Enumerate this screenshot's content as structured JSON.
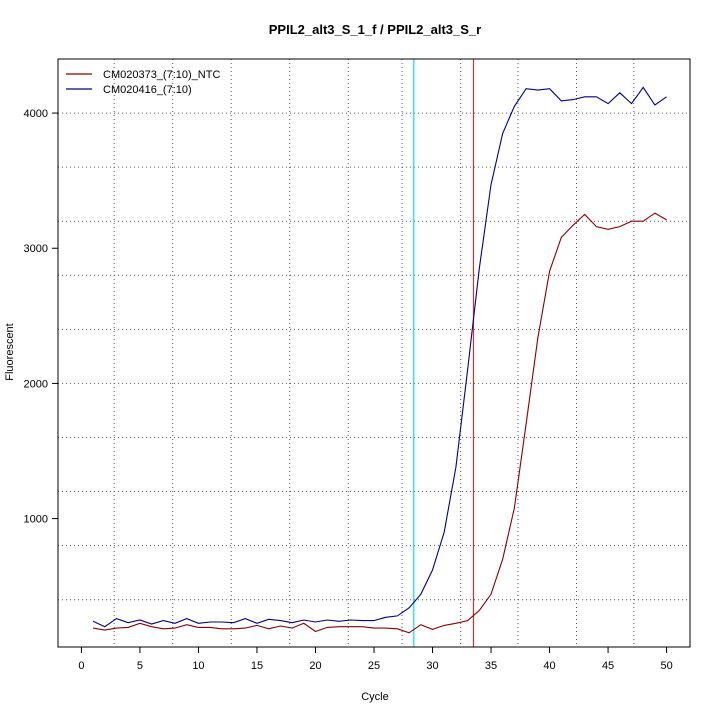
{
  "chart_data": {
    "type": "line",
    "title": "PPIL2_alt3_S_1_f / PPIL2_alt3_S_r",
    "xlabel": "Cycle",
    "ylabel": "Fluorescent",
    "xlim": [
      -2,
      52
    ],
    "ylim": [
      50,
      4400
    ],
    "xticks": [
      0,
      5,
      10,
      15,
      20,
      25,
      30,
      35,
      40,
      45,
      50
    ],
    "yticks": [
      1000,
      2000,
      3000,
      4000
    ],
    "grid": true,
    "grid_x": [
      2.8,
      7.8,
      12.8,
      17.8,
      22.8,
      27.4,
      32.4,
      37.3,
      42.3,
      47.2
    ],
    "grid_y": [
      400,
      800,
      1200,
      1600,
      2000,
      2400,
      2800,
      3200,
      3600,
      4000
    ],
    "legend_position": "top-left",
    "series": [
      {
        "name": "CM020373_(7:10)_NTC",
        "color": "#8b0000",
        "x": [
          1,
          2,
          3,
          4,
          5,
          6,
          7,
          8,
          9,
          10,
          11,
          12,
          13,
          14,
          15,
          16,
          17,
          18,
          19,
          20,
          21,
          22,
          23,
          24,
          25,
          26,
          27,
          28,
          29,
          30,
          31,
          32,
          33,
          34,
          35,
          36,
          37,
          38,
          39,
          40,
          41,
          42,
          43,
          44,
          45,
          46,
          47,
          48,
          49,
          50
        ],
        "values": [
          190,
          175,
          190,
          195,
          225,
          200,
          185,
          190,
          215,
          195,
          195,
          185,
          185,
          190,
          210,
          185,
          205,
          190,
          225,
          165,
          195,
          200,
          200,
          200,
          190,
          190,
          185,
          155,
          215,
          180,
          210,
          225,
          245,
          320,
          440,
          700,
          1080,
          1700,
          2340,
          2830,
          3080,
          3170,
          3250,
          3160,
          3140,
          3160,
          3200,
          3200,
          3260,
          3210
        ]
      },
      {
        "name": "CM020416_(7:10)",
        "color": "#00008b",
        "x": [
          1,
          2,
          3,
          4,
          5,
          6,
          7,
          8,
          9,
          10,
          11,
          12,
          13,
          14,
          15,
          16,
          17,
          18,
          19,
          20,
          21,
          22,
          23,
          24,
          25,
          26,
          27,
          28,
          29,
          30,
          31,
          32,
          33,
          34,
          35,
          36,
          37,
          38,
          39,
          40,
          41,
          42,
          43,
          44,
          45,
          46,
          47,
          48,
          49,
          50
        ],
        "values": [
          240,
          200,
          260,
          230,
          250,
          220,
          245,
          225,
          260,
          225,
          235,
          235,
          230,
          260,
          225,
          255,
          245,
          230,
          250,
          235,
          250,
          240,
          250,
          245,
          245,
          270,
          280,
          340,
          440,
          620,
          900,
          1380,
          2100,
          2850,
          3470,
          3850,
          4050,
          4180,
          4170,
          4180,
          4090,
          4100,
          4120,
          4120,
          4070,
          4150,
          4070,
          4190,
          4060,
          4120
        ]
      }
    ],
    "vlines": [
      {
        "x": 28.4,
        "color": "#00e5ee"
      },
      {
        "x": 33.5,
        "color": "#cd3333"
      }
    ]
  }
}
